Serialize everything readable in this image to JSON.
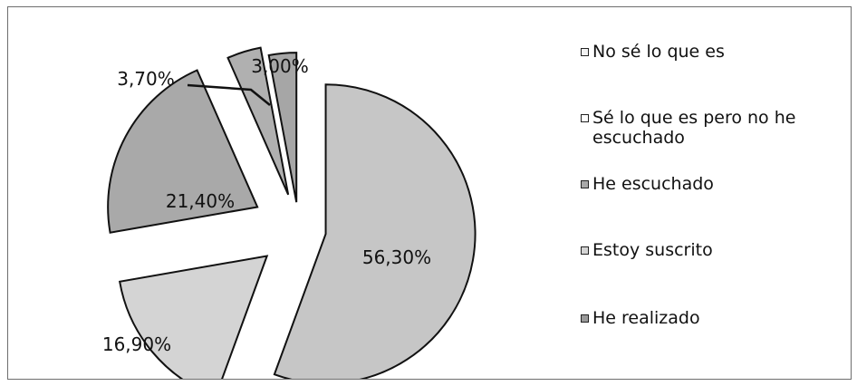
{
  "chart_data": {
    "type": "pie",
    "exploded": true,
    "slices": [
      {
        "label": "No sé lo que es",
        "value": 3.0,
        "value_label": "3,00%",
        "color": "#a6a6a6"
      },
      {
        "label": "Sé lo que es pero no he escuchado",
        "value": 3.7,
        "value_label": "3,70%",
        "color": "#b0b0b0"
      },
      {
        "label": "He escuchado",
        "value": 21.4,
        "value_label": "21,40%",
        "color": "#a9a9a9"
      },
      {
        "label": "Estoy suscrito",
        "value": 16.9,
        "value_label": "16,90%",
        "color": "#d4d4d4"
      },
      {
        "label": "He realizado",
        "value": 56.3,
        "value_label": "56,30%",
        "color": "#c6c6c6"
      }
    ],
    "legend_position": "right",
    "legend": [
      {
        "label": "No sé lo que es",
        "color": "#f2f2f2"
      },
      {
        "label": "Sé lo que es pero no he escuchado",
        "color": "#ffffff"
      },
      {
        "label": "He escuchado",
        "color": "#a9a9a9"
      },
      {
        "label": "Estoy suscrito",
        "color": "#d4d4d4"
      },
      {
        "label": "He realizado",
        "color": "#9a9a9a"
      }
    ]
  }
}
